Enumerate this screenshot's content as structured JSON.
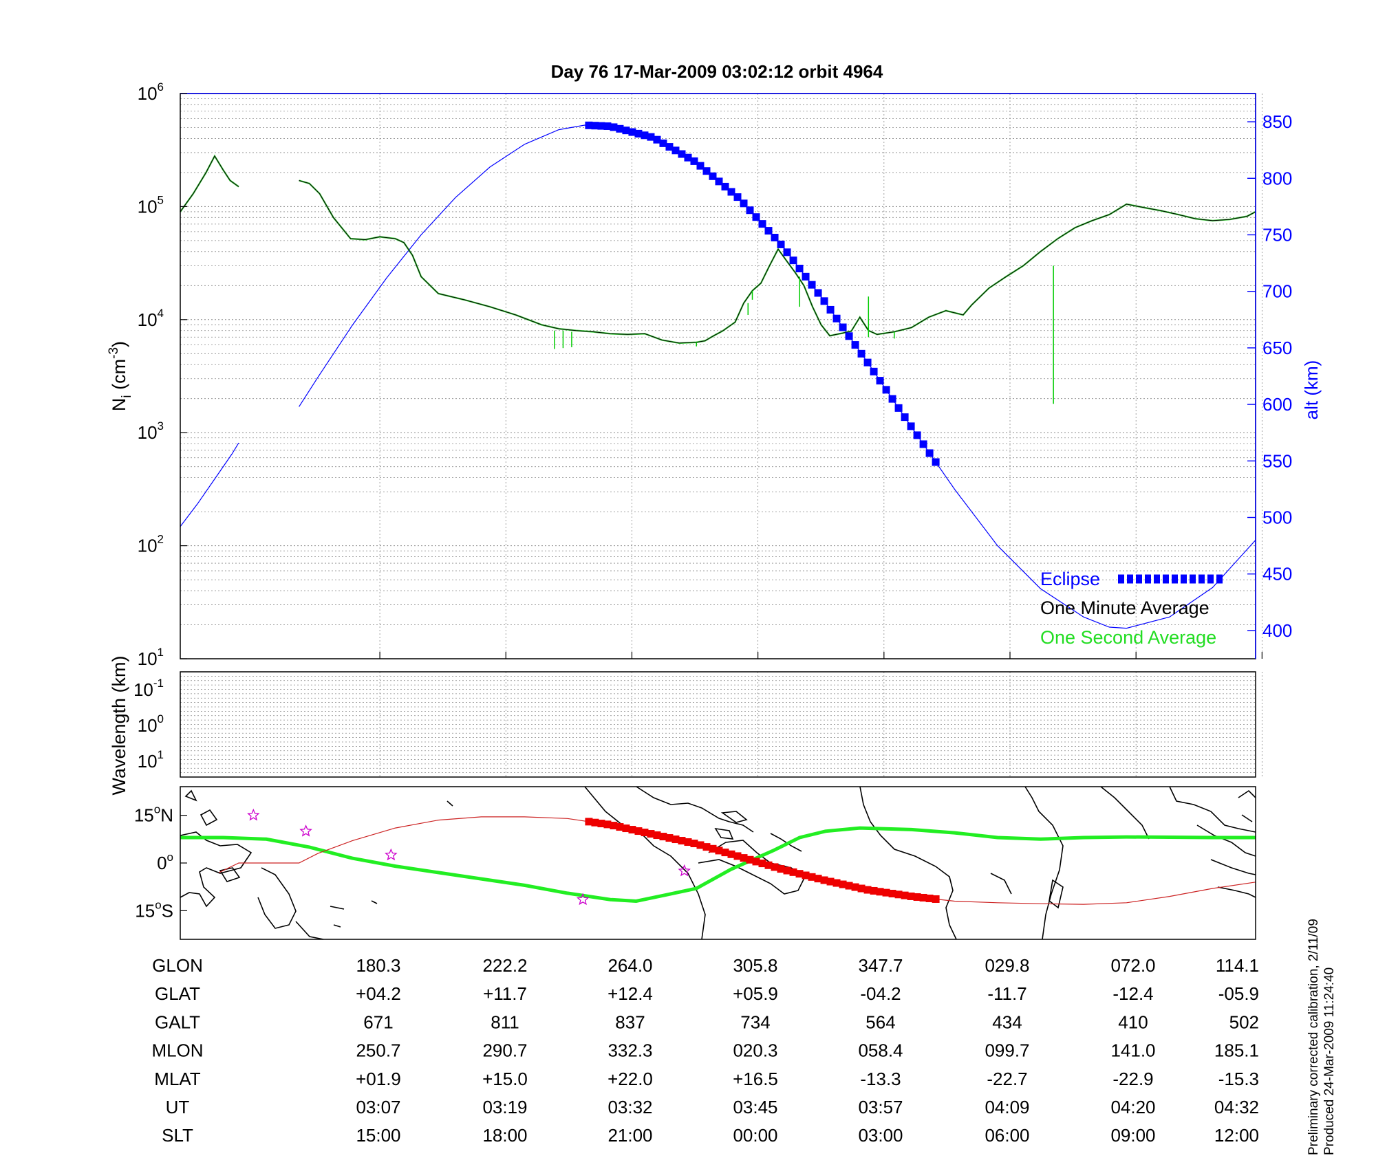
{
  "title": "Day 76  17-Mar-2009 03:02:12   orbit 4964",
  "footer_notes": [
    "Preliminary corrected calibration, 2/11/09",
    "Produced 24-Mar-2009 11:24:40"
  ],
  "colors": {
    "blue": "#0000ff",
    "green": "#00cc00",
    "black": "#000000",
    "red": "#ee0000",
    "map_track": "#22ee22",
    "star": "#cc00cc"
  },
  "chart_data": [
    {
      "type": "line",
      "panel": "density",
      "ylabel": "N_i (cm^-3)",
      "ylabel_parts": {
        "base": "N",
        "sub": "i",
        "unit": " (cm",
        "sup": "-3",
        "close": ")"
      },
      "y_scale": "log",
      "ylim": [
        10,
        1000000
      ],
      "y_ticks": [
        {
          "base": "10",
          "exp": "1"
        },
        {
          "base": "10",
          "exp": "2"
        },
        {
          "base": "10",
          "exp": "3"
        },
        {
          "base": "10",
          "exp": "4"
        },
        {
          "base": "10",
          "exp": "5"
        },
        {
          "base": "10",
          "exp": "6"
        }
      ],
      "y2label": "alt (km)",
      "y2lim": [
        375,
        875
      ],
      "y2_ticks": [
        "400",
        "450",
        "500",
        "550",
        "600",
        "650",
        "700",
        "750",
        "800",
        "850"
      ],
      "x_ticks_ut": [
        "03:07",
        "03:19",
        "03:32",
        "03:45",
        "03:57",
        "04:09",
        "04:20",
        "04:32"
      ],
      "legend": {
        "position": "bottom-right",
        "entries": [
          "Eclipse",
          "One Minute Average",
          "One Second Average"
        ]
      },
      "series": [
        {
          "name": "One Minute Average",
          "color": "#000000",
          "segments": [
            [
              [
                0,
                90000
              ],
              [
                0.015,
                130000
              ],
              [
                0.03,
                200000
              ],
              [
                0.04,
                280000
              ],
              [
                0.05,
                210000
              ],
              [
                0.058,
                170000
              ],
              [
                0.068,
                150000
              ]
            ],
            [
              [
                0.138,
                170000
              ],
              [
                0.15,
                160000
              ],
              [
                0.162,
                130000
              ],
              [
                0.178,
                80000
              ],
              [
                0.198,
                52000
              ],
              [
                0.215,
                51000
              ],
              [
                0.232,
                54000
              ],
              [
                0.25,
                52000
              ],
              [
                0.26,
                48000
              ],
              [
                0.27,
                37000
              ],
              [
                0.28,
                24000
              ],
              [
                0.3,
                17000
              ],
              [
                0.33,
                15000
              ],
              [
                0.36,
                13000
              ],
              [
                0.39,
                11000
              ],
              [
                0.42,
                9000
              ],
              [
                0.44,
                8300
              ],
              [
                0.46,
                8000
              ],
              [
                0.48,
                7800
              ],
              [
                0.5,
                7500
              ],
              [
                0.52,
                7400
              ],
              [
                0.54,
                7500
              ],
              [
                0.56,
                6600
              ],
              [
                0.58,
                6200
              ],
              [
                0.6,
                6300
              ],
              [
                0.61,
                6500
              ],
              [
                0.62,
                7200
              ],
              [
                0.63,
                7900
              ],
              [
                0.645,
                9500
              ],
              [
                0.655,
                14000
              ],
              [
                0.665,
                18000
              ],
              [
                0.675,
                21000
              ],
              [
                0.685,
                30000
              ],
              [
                0.695,
                42000
              ],
              [
                0.705,
                33000
              ],
              [
                0.715,
                26000
              ],
              [
                0.725,
                20000
              ],
              [
                0.735,
                13000
              ],
              [
                0.745,
                9000
              ],
              [
                0.755,
                7200
              ],
              [
                0.77,
                7600
              ],
              [
                0.78,
                7900
              ],
              [
                0.79,
                10500
              ],
              [
                0.8,
                8000
              ],
              [
                0.81,
                7400
              ],
              [
                0.82,
                7600
              ],
              [
                0.83,
                7800
              ],
              [
                0.85,
                8500
              ],
              [
                0.87,
                10500
              ],
              [
                0.89,
                12000
              ],
              [
                0.91,
                11000
              ],
              [
                0.92,
                13500
              ],
              [
                0.94,
                19000
              ],
              [
                0.96,
                24000
              ],
              [
                0.98,
                30000
              ],
              [
                1.0,
                40000
              ],
              [
                1.02,
                52000
              ],
              [
                1.04,
                65000
              ],
              [
                1.06,
                75000
              ],
              [
                1.08,
                85000
              ],
              [
                1.1,
                105000
              ],
              [
                1.12,
                98000
              ],
              [
                1.14,
                92000
              ],
              [
                1.16,
                85000
              ],
              [
                1.18,
                78000
              ],
              [
                1.2,
                75000
              ],
              [
                1.22,
                77000
              ],
              [
                1.24,
                82000
              ],
              [
                1.25,
                90000
              ]
            ]
          ]
        },
        {
          "name": "One Second Average",
          "color": "#00cc00",
          "spikes": [
            [
              0.435,
              8000,
              5500
            ],
            [
              0.445,
              8000,
              5600
            ],
            [
              0.455,
              7800,
              5700
            ],
            [
              0.6,
              6300,
              5800
            ],
            [
              0.66,
              14000,
              11000
            ],
            [
              0.665,
              18000,
              15000
            ],
            [
              0.72,
              24000,
              13000
            ],
            [
              0.8,
              16000,
              7000
            ],
            [
              0.83,
              7800,
              6800
            ],
            [
              1.015,
              30000,
              1800
            ]
          ]
        },
        {
          "name": "alt",
          "axis": "y2",
          "color": "#0000ff",
          "segments": [
            [
              [
                0,
                492
              ],
              [
                0.02,
                512
              ],
              [
                0.04,
                534
              ],
              [
                0.06,
                556
              ],
              [
                0.068,
                566
              ]
            ],
            [
              [
                0.138,
                598
              ],
              [
                0.16,
                624
              ],
              [
                0.2,
                670
              ],
              [
                0.24,
                712
              ],
              [
                0.28,
                750
              ],
              [
                0.32,
                783
              ],
              [
                0.36,
                810
              ],
              [
                0.4,
                830
              ],
              [
                0.44,
                843
              ],
              [
                0.47,
                847
              ],
              [
                0.5,
                846
              ],
              [
                0.55,
                836
              ],
              [
                0.6,
                814
              ],
              [
                0.65,
                782
              ],
              [
                0.7,
                740
              ],
              [
                0.75,
                690
              ],
              [
                0.8,
                636
              ],
              [
                0.85,
                580
              ],
              [
                0.9,
                525
              ],
              [
                0.95,
                475
              ],
              [
                1.0,
                437
              ],
              [
                1.05,
                412
              ],
              [
                1.08,
                403
              ],
              [
                1.1,
                402
              ],
              [
                1.15,
                412
              ],
              [
                1.2,
                438
              ],
              [
                1.25,
                480
              ]
            ]
          ]
        },
        {
          "name": "Eclipse",
          "axis": "y2",
          "color": "#0000ff",
          "range": [
            0.475,
            0.88
          ]
        }
      ]
    },
    {
      "type": "heatmap",
      "panel": "wavelength",
      "ylabel": "Wavelength (km)",
      "y_ticks": [
        {
          "base": "10",
          "exp": "-1"
        },
        {
          "base": "10",
          "exp": "0"
        },
        {
          "base": "10",
          "exp": "1"
        }
      ]
    },
    {
      "type": "line",
      "panel": "map",
      "ylim": [
        -24,
        24
      ],
      "y_ticks": [
        {
          "deg": "15",
          "sym": "o",
          "hemi": "N",
          "value": 15
        },
        {
          "deg": "0",
          "sym": "o",
          "hemi": "",
          "value": 0
        },
        {
          "deg": "15",
          "sym": "o",
          "hemi": "S",
          "value": -15
        }
      ],
      "magnetic_equator": [
        [
          0,
          8
        ],
        [
          0.05,
          8
        ],
        [
          0.1,
          7.5
        ],
        [
          0.15,
          5
        ],
        [
          0.2,
          1.5
        ],
        [
          0.25,
          -1
        ],
        [
          0.3,
          -3
        ],
        [
          0.35,
          -5
        ],
        [
          0.4,
          -7
        ],
        [
          0.45,
          -9.5
        ],
        [
          0.5,
          -11.5
        ],
        [
          0.53,
          -12
        ],
        [
          0.565,
          -10
        ],
        [
          0.6,
          -8
        ],
        [
          0.64,
          -2
        ],
        [
          0.69,
          4
        ],
        [
          0.72,
          8
        ],
        [
          0.75,
          10
        ],
        [
          0.79,
          11
        ],
        [
          0.85,
          10.5
        ],
        [
          0.9,
          9.5
        ],
        [
          0.95,
          8
        ],
        [
          1.0,
          7.5
        ],
        [
          1.05,
          8
        ],
        [
          1.1,
          8.2
        ],
        [
          1.15,
          8.1
        ],
        [
          1.2,
          8
        ],
        [
          1.25,
          8
        ]
      ],
      "ground_track": [
        [
          0.045,
          -3
        ],
        [
          0.068,
          0
        ],
        [
          0.138,
          0
        ],
        [
          0.16,
          3
        ],
        [
          0.2,
          7
        ],
        [
          0.25,
          11
        ],
        [
          0.3,
          13.5
        ],
        [
          0.35,
          14.5
        ],
        [
          0.4,
          14.5
        ],
        [
          0.45,
          14
        ],
        [
          0.5,
          12
        ],
        [
          0.55,
          9
        ],
        [
          0.6,
          6
        ],
        [
          0.65,
          2
        ],
        [
          0.7,
          -2
        ],
        [
          0.75,
          -5.5
        ],
        [
          0.8,
          -8.5
        ],
        [
          0.85,
          -10.5
        ],
        [
          0.9,
          -12
        ],
        [
          0.95,
          -12.5
        ],
        [
          1.0,
          -12.8
        ],
        [
          1.05,
          -13
        ],
        [
          1.1,
          -12.5
        ],
        [
          1.15,
          -10.5
        ],
        [
          1.2,
          -8
        ],
        [
          1.25,
          -6
        ]
      ],
      "eclipse_range": [
        0.475,
        0.88
      ],
      "stars": [
        [
          0.085,
          15
        ],
        [
          0.146,
          10
        ],
        [
          0.245,
          2.5
        ],
        [
          0.468,
          -11.5
        ],
        [
          0.586,
          -2.5
        ]
      ]
    },
    {
      "type": "table",
      "panel": "ephemeris",
      "rows": [
        {
          "label": "GLON",
          "values": [
            "180.3",
            "222.2",
            "264.0",
            "305.8",
            "347.7",
            "029.8",
            "072.0",
            "114.1"
          ]
        },
        {
          "label": "GLAT",
          "values": [
            "+04.2",
            "+11.7",
            "+12.4",
            "+05.9",
            "-04.2",
            "-11.7",
            "-12.4",
            "-05.9"
          ]
        },
        {
          "label": "GALT",
          "values": [
            "671",
            "811",
            "837",
            "734",
            "564",
            "434",
            "410",
            "502"
          ]
        },
        {
          "label": "MLON",
          "values": [
            "250.7",
            "290.7",
            "332.3",
            "020.3",
            "058.4",
            "099.7",
            "141.0",
            "185.1"
          ]
        },
        {
          "label": "MLAT",
          "values": [
            "+01.9",
            "+15.0",
            "+22.0",
            "+16.5",
            "-13.3",
            "-22.7",
            "-22.9",
            "-15.3"
          ]
        },
        {
          "label": "UT",
          "values": [
            "03:07",
            "03:19",
            "03:32",
            "03:45",
            "03:57",
            "04:09",
            "04:20",
            "04:32"
          ]
        },
        {
          "label": "SLT",
          "values": [
            "15:00",
            "18:00",
            "21:00",
            "00:00",
            "03:00",
            "06:00",
            "09:00",
            "12:00"
          ]
        }
      ]
    }
  ]
}
